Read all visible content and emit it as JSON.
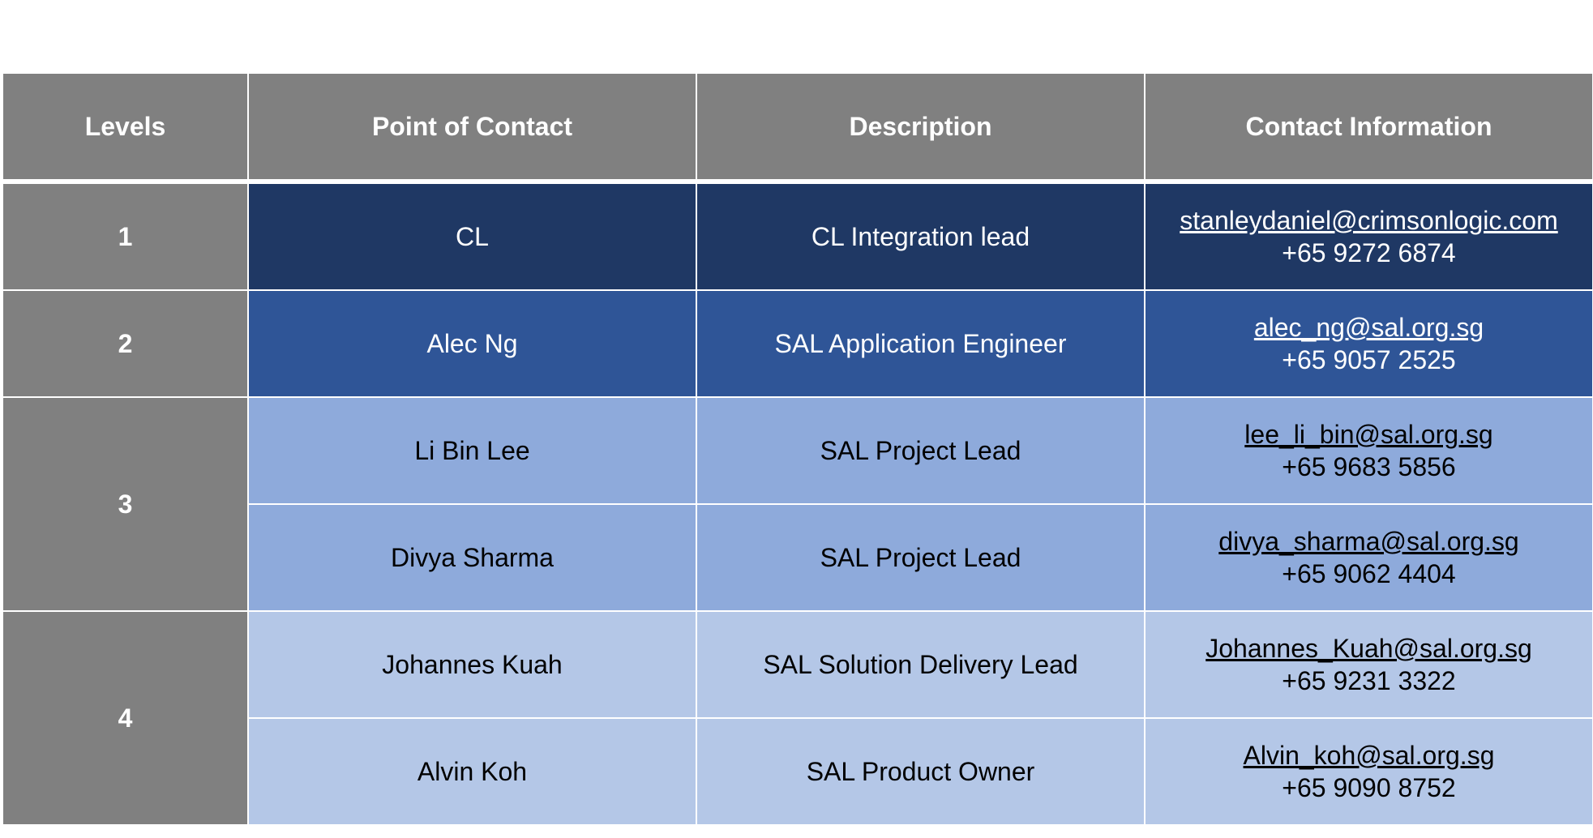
{
  "table": {
    "headers": {
      "levels": "Levels",
      "point_of_contact": "Point of Contact",
      "description": "Description",
      "contact_information": "Contact Information"
    },
    "levels": [
      "1",
      "2",
      "3",
      "4"
    ],
    "rows": [
      {
        "level": "1",
        "name": "CL",
        "description": "CL Integration lead",
        "email": "stanleydaniel@crimsonlogic.com",
        "phone": "+65 9272 6874"
      },
      {
        "level": "2",
        "name": "Alec Ng",
        "description": "SAL Application Engineer",
        "email": "alec_ng@sal.org.sg",
        "phone": "+65 9057 2525"
      },
      {
        "level": "3",
        "name": "Li Bin Lee",
        "description": "SAL Project Lead",
        "email": "lee_li_bin@sal.org.sg",
        "phone": "+65 9683 5856"
      },
      {
        "level": "3",
        "name": "Divya Sharma",
        "description": "SAL Project Lead",
        "email": "divya_sharma@sal.org.sg",
        "phone": "+65 9062 4404"
      },
      {
        "level": "4",
        "name": "Johannes Kuah",
        "description": "SAL Solution Delivery Lead",
        "email": "Johannes_Kuah@sal.org.sg",
        "phone": "+65 9231 3322"
      },
      {
        "level": "4",
        "name": "Alvin Koh",
        "description": "SAL Product Owner",
        "email": "Alvin_koh@sal.org.sg",
        "phone": "+65 9090 8752"
      }
    ]
  },
  "colors": {
    "header_gray": "#808080",
    "level1_navy": "#1f3864",
    "level2_blue": "#2f5597",
    "level3_light_blue": "#8eaadb",
    "level4_pale_blue": "#b4c7e7"
  }
}
